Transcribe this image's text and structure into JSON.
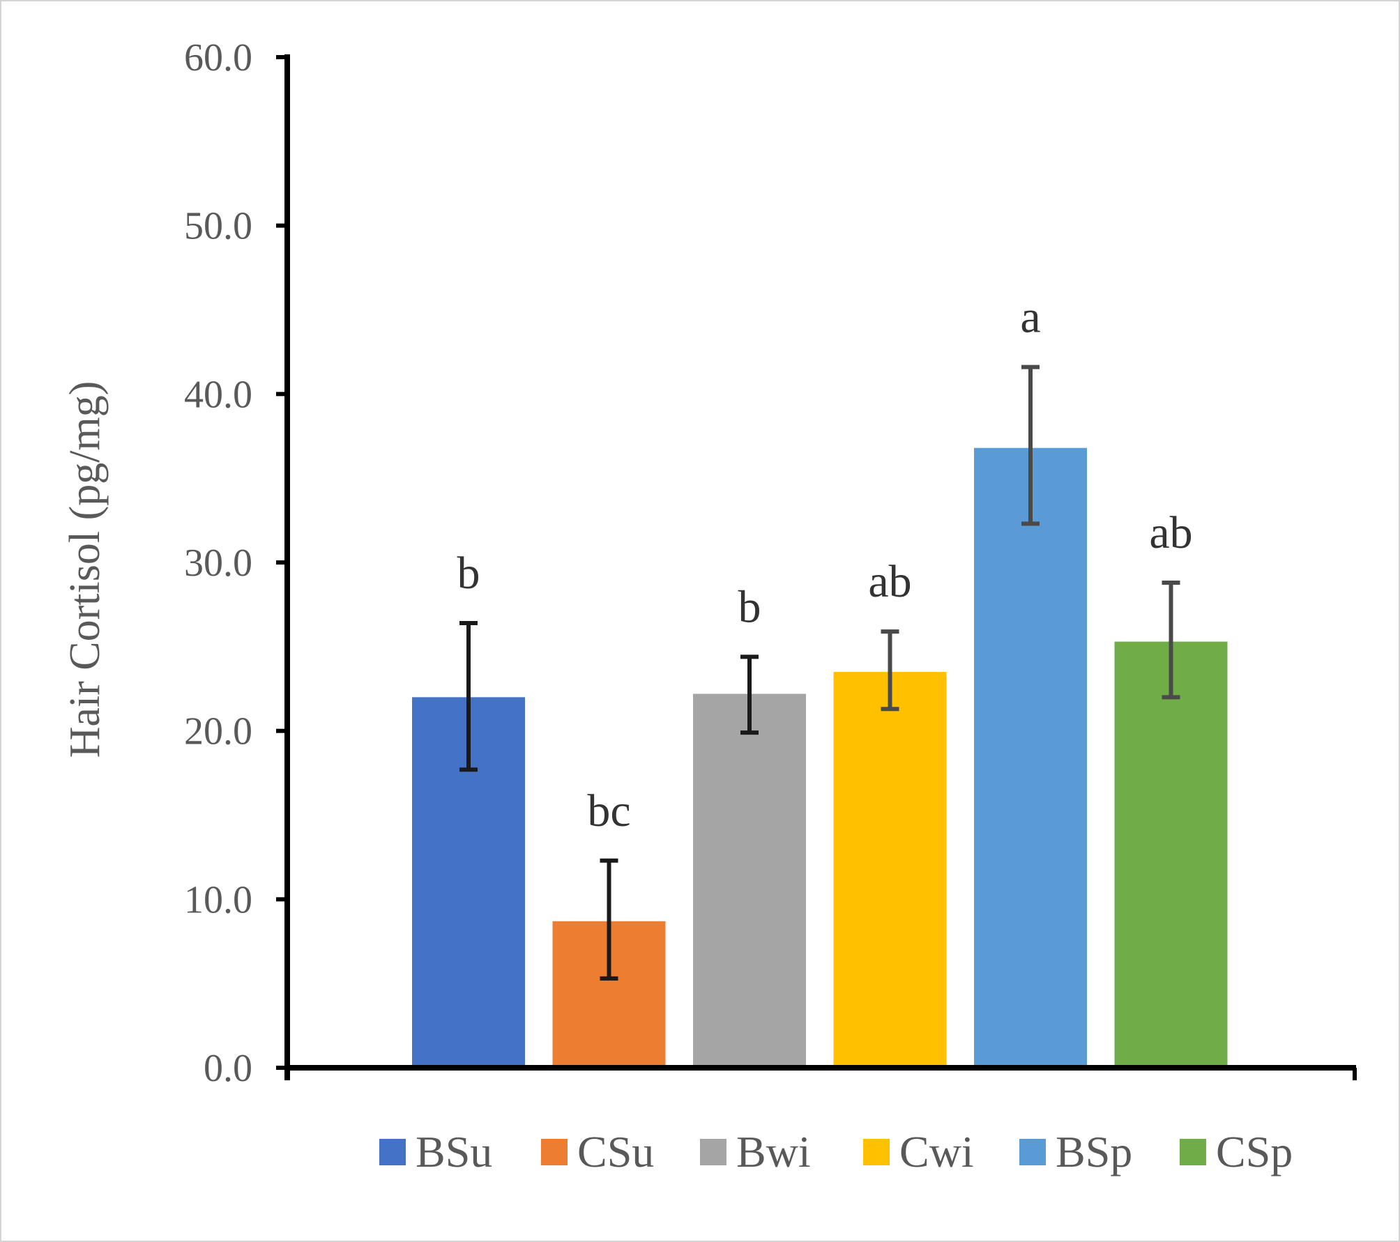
{
  "chart_data": {
    "type": "bar",
    "title": "",
    "xlabel": "",
    "ylabel": "Hair Cortisol (pg/mg)",
    "ylim": [
      0,
      60
    ],
    "yticks": [
      "0.0",
      "10.0",
      "20.0",
      "30.0",
      "40.0",
      "50.0",
      "60.0"
    ],
    "categories": [
      "BSu",
      "CSu",
      "Bwi",
      "Cwi",
      "BSp",
      "CSp"
    ],
    "values": [
      22.0,
      8.7,
      22.2,
      23.5,
      36.8,
      25.3
    ],
    "error_low": [
      17.7,
      5.3,
      19.9,
      21.3,
      32.3,
      22.0
    ],
    "error_high": [
      26.4,
      12.3,
      24.4,
      25.9,
      41.6,
      28.8
    ],
    "significance": [
      "b",
      "bc",
      "b",
      "ab",
      "a",
      "ab"
    ],
    "colors": [
      "#4472c4",
      "#ed7d31",
      "#a5a5a5",
      "#ffc000",
      "#5b9bd5",
      "#70ad47"
    ],
    "error_bar_colors": [
      "#1a1a1a",
      "#1a1a1a",
      "#1a1a1a",
      "#4a4a4a",
      "#4a4a4a",
      "#4a4a4a"
    ],
    "legend": {
      "position": "bottom",
      "entries": [
        "BSu",
        "CSu",
        "Bwi",
        "Cwi",
        "BSp",
        "CSp"
      ]
    },
    "grid": false
  }
}
